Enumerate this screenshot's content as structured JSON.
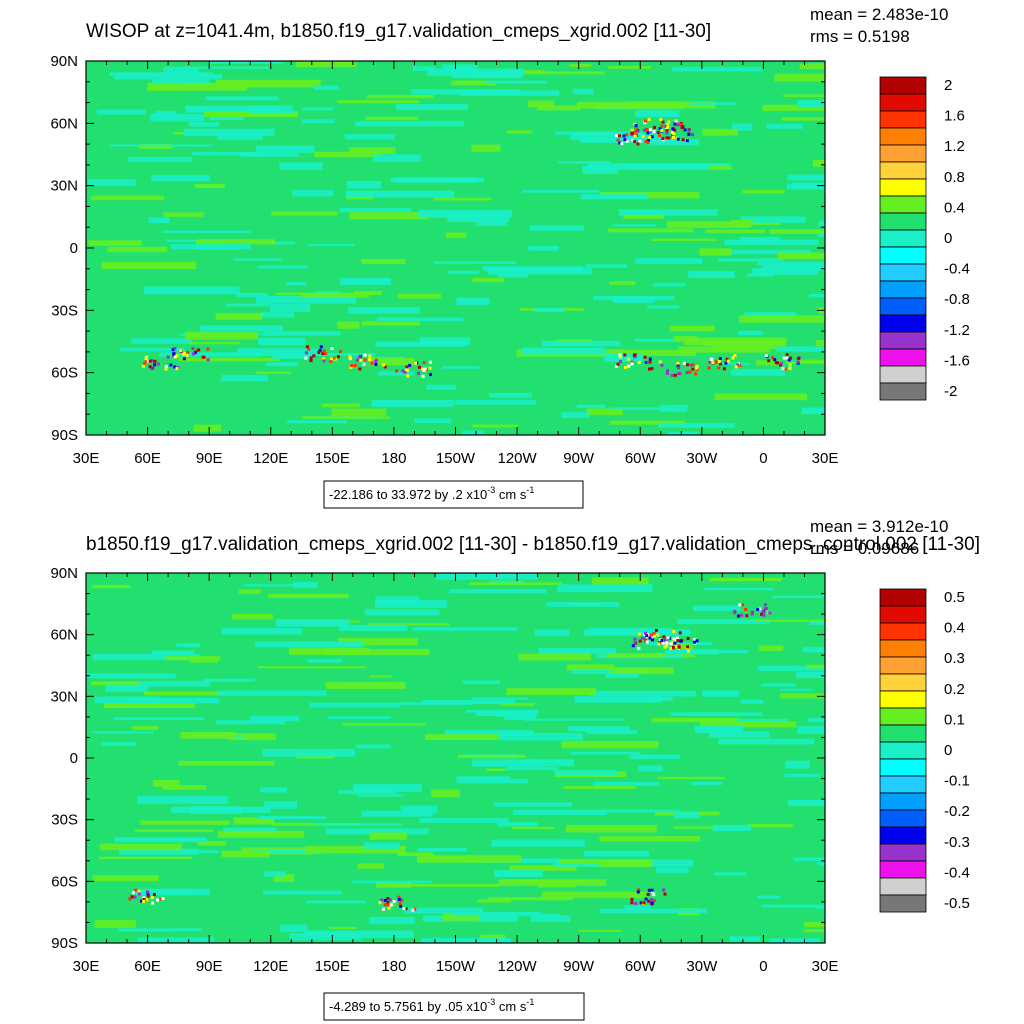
{
  "chart_data": [
    {
      "type": "heatmap",
      "title": "WISOP at z=1041.4m, b1850.f19_g17.validation_cmeps_xgrid.002 [11-30]",
      "stats": {
        "mean": "mean = 2.483e-10",
        "rms": "rms = 0.5198"
      },
      "x_ticks": [
        "30E",
        "60E",
        "90E",
        "120E",
        "150E",
        "180",
        "150W",
        "120W",
        "90W",
        "60W",
        "30W",
        "0",
        "30E"
      ],
      "y_ticks": [
        "90N",
        "60N",
        "30N",
        "0",
        "30S",
        "60S",
        "90S"
      ],
      "xlim": [
        "30E",
        "30E"
      ],
      "ylim": [
        "90S",
        "90N"
      ],
      "range_label": {
        "text": "-22.186 to 33.972 by .2 x10",
        "exp": "-3",
        "unit_a": " cm s",
        "unit_exp": "-1"
      },
      "colorbar": {
        "labels": [
          "2",
          "1.6",
          "1.2",
          "0.8",
          "0.4",
          "0",
          "-0.4",
          "-0.8",
          "-1.2",
          "-1.6",
          "-2"
        ],
        "colors": [
          "#b30000",
          "#e00a00",
          "#ff3300",
          "#ff7f00",
          "#ffa033",
          "#ffd23a",
          "#ffff00",
          "#66ee22",
          "#22e070",
          "#19f0c8",
          "#00ffff",
          "#22ccff",
          "#00a0ff",
          "#0060ff",
          "#0000ee",
          "#9933cc",
          "#ee11ee",
          "#d0d0d0",
          "#777777"
        ]
      }
    },
    {
      "type": "heatmap",
      "title": "b1850.f19_g17.validation_cmeps_xgrid.002 [11-30] - b1850.f19_g17.validation_cmeps_control.002 [11-30]",
      "stats": {
        "mean": "mean = 3.912e-10",
        "rms": "rms = 0.09686"
      },
      "x_ticks": [
        "30E",
        "60E",
        "90E",
        "120E",
        "150E",
        "180",
        "150W",
        "120W",
        "90W",
        "60W",
        "30W",
        "0",
        "30E"
      ],
      "y_ticks": [
        "90N",
        "60N",
        "30N",
        "0",
        "30S",
        "60S",
        "90S"
      ],
      "xlim": [
        "30E",
        "30E"
      ],
      "ylim": [
        "90S",
        "90N"
      ],
      "range_label": {
        "text": "-4.289 to 5.7561 by .05 x10",
        "exp": "-3",
        "unit_a": " cm s",
        "unit_exp": "-1"
      },
      "colorbar": {
        "labels": [
          "0.5",
          "0.4",
          "0.3",
          "0.2",
          "0.1",
          "0",
          "-0.1",
          "-0.2",
          "-0.3",
          "-0.4",
          "-0.5"
        ],
        "colors": [
          "#b30000",
          "#e00a00",
          "#ff3300",
          "#ff7f00",
          "#ffa033",
          "#ffd23a",
          "#ffff00",
          "#66ee22",
          "#22e070",
          "#19f0c8",
          "#00ffff",
          "#22ccff",
          "#00a0ff",
          "#0060ff",
          "#0000ee",
          "#9933cc",
          "#ee11ee",
          "#d0d0d0",
          "#777777"
        ]
      }
    }
  ]
}
